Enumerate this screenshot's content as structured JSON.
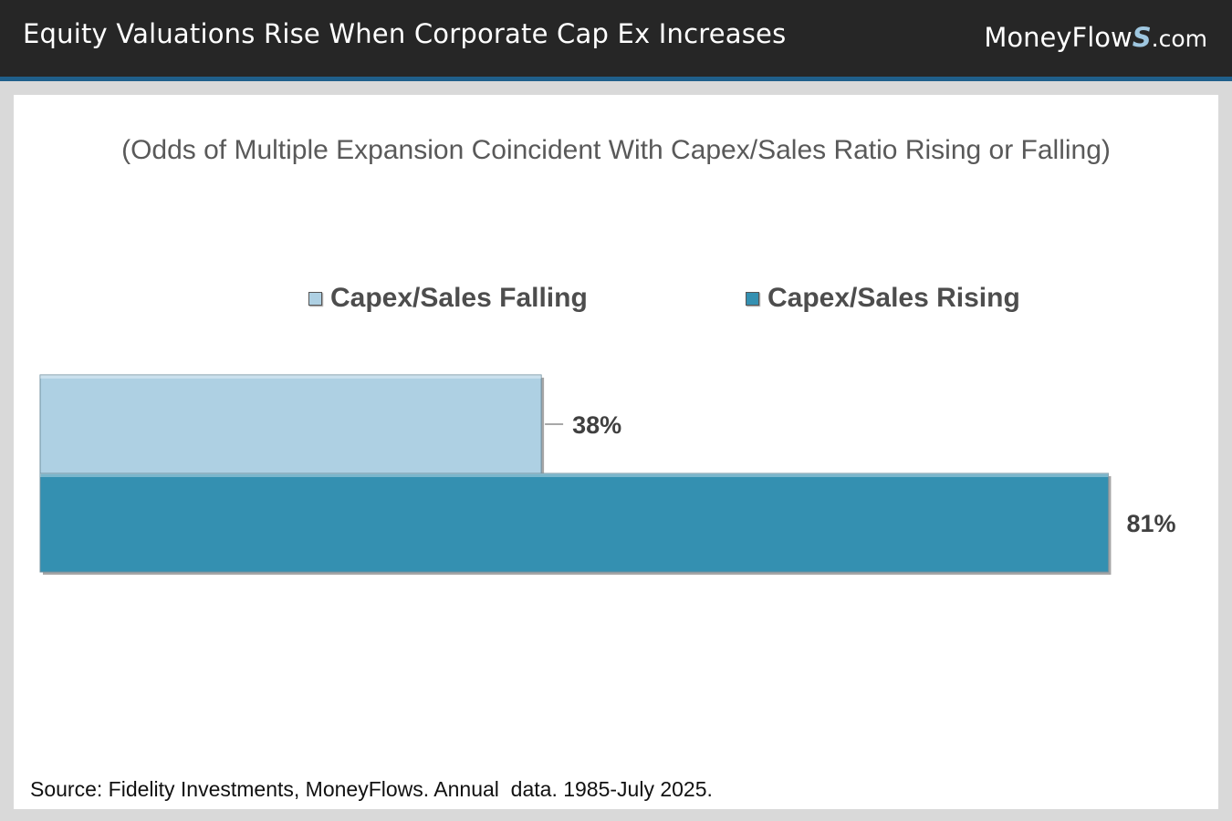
{
  "header": {
    "title": "Equity Valuations Rise When Corporate Cap Ex Increases",
    "brand_main": "MoneyFlow",
    "brand_s": "S",
    "brand_tld": ".com"
  },
  "colors": {
    "falling": "#aed0e3",
    "rising": "#3490b1",
    "header_bg": "#262626",
    "accent": "#1f5f8b"
  },
  "chart_data": {
    "type": "bar",
    "orientation": "horizontal",
    "title": "(Odds of Multiple Expansion Coincident With Capex/Sales Ratio Rising or Falling)",
    "categories": [
      "Capex/Sales Falling",
      "Capex/Sales Rising"
    ],
    "series": [
      {
        "name": "Capex/Sales Falling",
        "value": 38,
        "label": "38%"
      },
      {
        "name": "Capex/Sales Rising",
        "value": 81,
        "label": "81%"
      }
    ],
    "xlim": [
      0,
      100
    ],
    "unit": "%",
    "legend_position": "top",
    "grid": false
  },
  "footer": {
    "source": "Source: Fidelity Investments, MoneyFlows. Annual  data. 1985-July 2025."
  }
}
